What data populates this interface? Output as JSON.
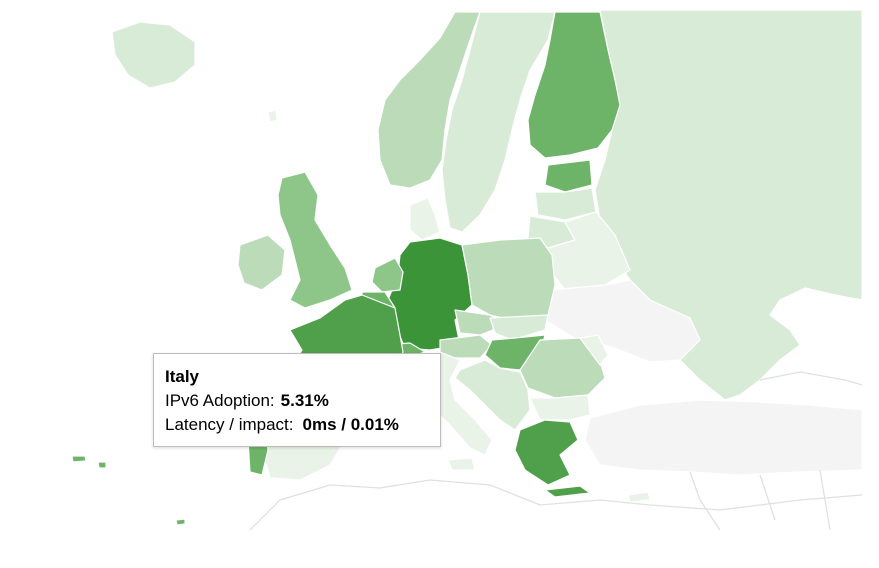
{
  "colors": {
    "background": "#ffffff",
    "no_data": "#f4f4f4",
    "level_1": "#e9f3e8",
    "level_2": "#d8ebd6",
    "level_3": "#bcdcb9",
    "level_4": "#8ec68a",
    "level_5": "#6db368",
    "level_6": "#4f9f4b",
    "level_7": "#3b9538"
  },
  "tooltip": {
    "country": "Italy",
    "ipv6_label": "IPv6 Adoption:",
    "ipv6_value": "5.31%",
    "latency_label": "Latency / impact:",
    "latency_value": "0ms / 0.01%"
  }
}
